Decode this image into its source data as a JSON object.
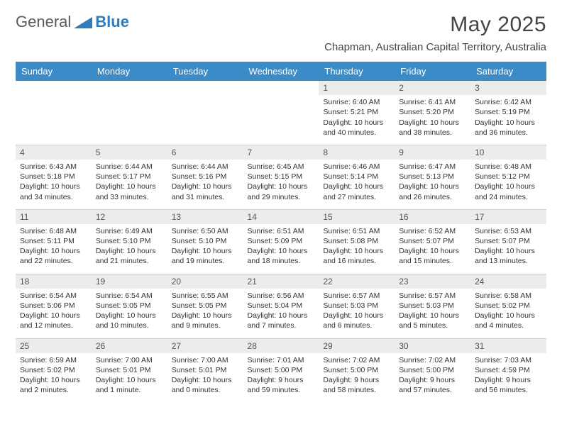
{
  "logo": {
    "text1": "General",
    "text2": "Blue"
  },
  "title": "May 2025",
  "location": "Chapman, Australian Capital Territory, Australia",
  "colors": {
    "header_bg": "#3b8bc9",
    "header_text": "#ffffff",
    "daynum_bg": "#ececec",
    "text": "#333333",
    "logo_accent": "#2e7cc0"
  },
  "day_headers": [
    "Sunday",
    "Monday",
    "Tuesday",
    "Wednesday",
    "Thursday",
    "Friday",
    "Saturday"
  ],
  "weeks": [
    [
      null,
      null,
      null,
      null,
      {
        "n": "1",
        "sr": "6:40 AM",
        "ss": "5:21 PM",
        "dl": "10 hours and 40 minutes."
      },
      {
        "n": "2",
        "sr": "6:41 AM",
        "ss": "5:20 PM",
        "dl": "10 hours and 38 minutes."
      },
      {
        "n": "3",
        "sr": "6:42 AM",
        "ss": "5:19 PM",
        "dl": "10 hours and 36 minutes."
      }
    ],
    [
      {
        "n": "4",
        "sr": "6:43 AM",
        "ss": "5:18 PM",
        "dl": "10 hours and 34 minutes."
      },
      {
        "n": "5",
        "sr": "6:44 AM",
        "ss": "5:17 PM",
        "dl": "10 hours and 33 minutes."
      },
      {
        "n": "6",
        "sr": "6:44 AM",
        "ss": "5:16 PM",
        "dl": "10 hours and 31 minutes."
      },
      {
        "n": "7",
        "sr": "6:45 AM",
        "ss": "5:15 PM",
        "dl": "10 hours and 29 minutes."
      },
      {
        "n": "8",
        "sr": "6:46 AM",
        "ss": "5:14 PM",
        "dl": "10 hours and 27 minutes."
      },
      {
        "n": "9",
        "sr": "6:47 AM",
        "ss": "5:13 PM",
        "dl": "10 hours and 26 minutes."
      },
      {
        "n": "10",
        "sr": "6:48 AM",
        "ss": "5:12 PM",
        "dl": "10 hours and 24 minutes."
      }
    ],
    [
      {
        "n": "11",
        "sr": "6:48 AM",
        "ss": "5:11 PM",
        "dl": "10 hours and 22 minutes."
      },
      {
        "n": "12",
        "sr": "6:49 AM",
        "ss": "5:10 PM",
        "dl": "10 hours and 21 minutes."
      },
      {
        "n": "13",
        "sr": "6:50 AM",
        "ss": "5:10 PM",
        "dl": "10 hours and 19 minutes."
      },
      {
        "n": "14",
        "sr": "6:51 AM",
        "ss": "5:09 PM",
        "dl": "10 hours and 18 minutes."
      },
      {
        "n": "15",
        "sr": "6:51 AM",
        "ss": "5:08 PM",
        "dl": "10 hours and 16 minutes."
      },
      {
        "n": "16",
        "sr": "6:52 AM",
        "ss": "5:07 PM",
        "dl": "10 hours and 15 minutes."
      },
      {
        "n": "17",
        "sr": "6:53 AM",
        "ss": "5:07 PM",
        "dl": "10 hours and 13 minutes."
      }
    ],
    [
      {
        "n": "18",
        "sr": "6:54 AM",
        "ss": "5:06 PM",
        "dl": "10 hours and 12 minutes."
      },
      {
        "n": "19",
        "sr": "6:54 AM",
        "ss": "5:05 PM",
        "dl": "10 hours and 10 minutes."
      },
      {
        "n": "20",
        "sr": "6:55 AM",
        "ss": "5:05 PM",
        "dl": "10 hours and 9 minutes."
      },
      {
        "n": "21",
        "sr": "6:56 AM",
        "ss": "5:04 PM",
        "dl": "10 hours and 7 minutes."
      },
      {
        "n": "22",
        "sr": "6:57 AM",
        "ss": "5:03 PM",
        "dl": "10 hours and 6 minutes."
      },
      {
        "n": "23",
        "sr": "6:57 AM",
        "ss": "5:03 PM",
        "dl": "10 hours and 5 minutes."
      },
      {
        "n": "24",
        "sr": "6:58 AM",
        "ss": "5:02 PM",
        "dl": "10 hours and 4 minutes."
      }
    ],
    [
      {
        "n": "25",
        "sr": "6:59 AM",
        "ss": "5:02 PM",
        "dl": "10 hours and 2 minutes."
      },
      {
        "n": "26",
        "sr": "7:00 AM",
        "ss": "5:01 PM",
        "dl": "10 hours and 1 minute."
      },
      {
        "n": "27",
        "sr": "7:00 AM",
        "ss": "5:01 PM",
        "dl": "10 hours and 0 minutes."
      },
      {
        "n": "28",
        "sr": "7:01 AM",
        "ss": "5:00 PM",
        "dl": "9 hours and 59 minutes."
      },
      {
        "n": "29",
        "sr": "7:02 AM",
        "ss": "5:00 PM",
        "dl": "9 hours and 58 minutes."
      },
      {
        "n": "30",
        "sr": "7:02 AM",
        "ss": "5:00 PM",
        "dl": "9 hours and 57 minutes."
      },
      {
        "n": "31",
        "sr": "7:03 AM",
        "ss": "4:59 PM",
        "dl": "9 hours and 56 minutes."
      }
    ]
  ],
  "labels": {
    "sunrise": "Sunrise: ",
    "sunset": "Sunset: ",
    "daylight": "Daylight: "
  }
}
